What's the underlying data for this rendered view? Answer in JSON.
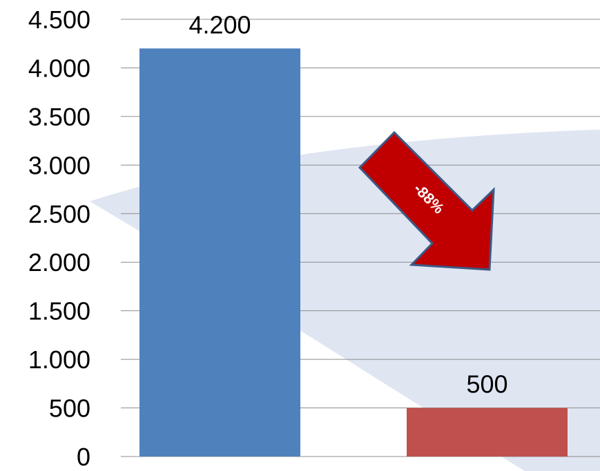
{
  "chart_data": {
    "type": "bar",
    "categories": [
      "",
      ""
    ],
    "values": [
      4200,
      500
    ],
    "data_labels": [
      "4.200",
      "500"
    ],
    "colors": [
      "#4f81bd",
      "#c0504d"
    ],
    "ylim": [
      0,
      4500
    ],
    "y_ticks": [
      0,
      500,
      1000,
      1500,
      2000,
      2500,
      3000,
      3500,
      4000,
      4500
    ],
    "y_tick_labels": [
      "0",
      "500",
      "1.000",
      "1.500",
      "2.000",
      "2.500",
      "3.000",
      "3.500",
      "4.000",
      "4.500"
    ],
    "grid": true,
    "title": "",
    "xlabel": "",
    "ylabel": "",
    "annotation": {
      "text": "-88%",
      "shape": "down-right-arrow",
      "fill": "#c00000",
      "stroke": "#3b5a86"
    },
    "background_shape_color": "#dfe5f1"
  }
}
